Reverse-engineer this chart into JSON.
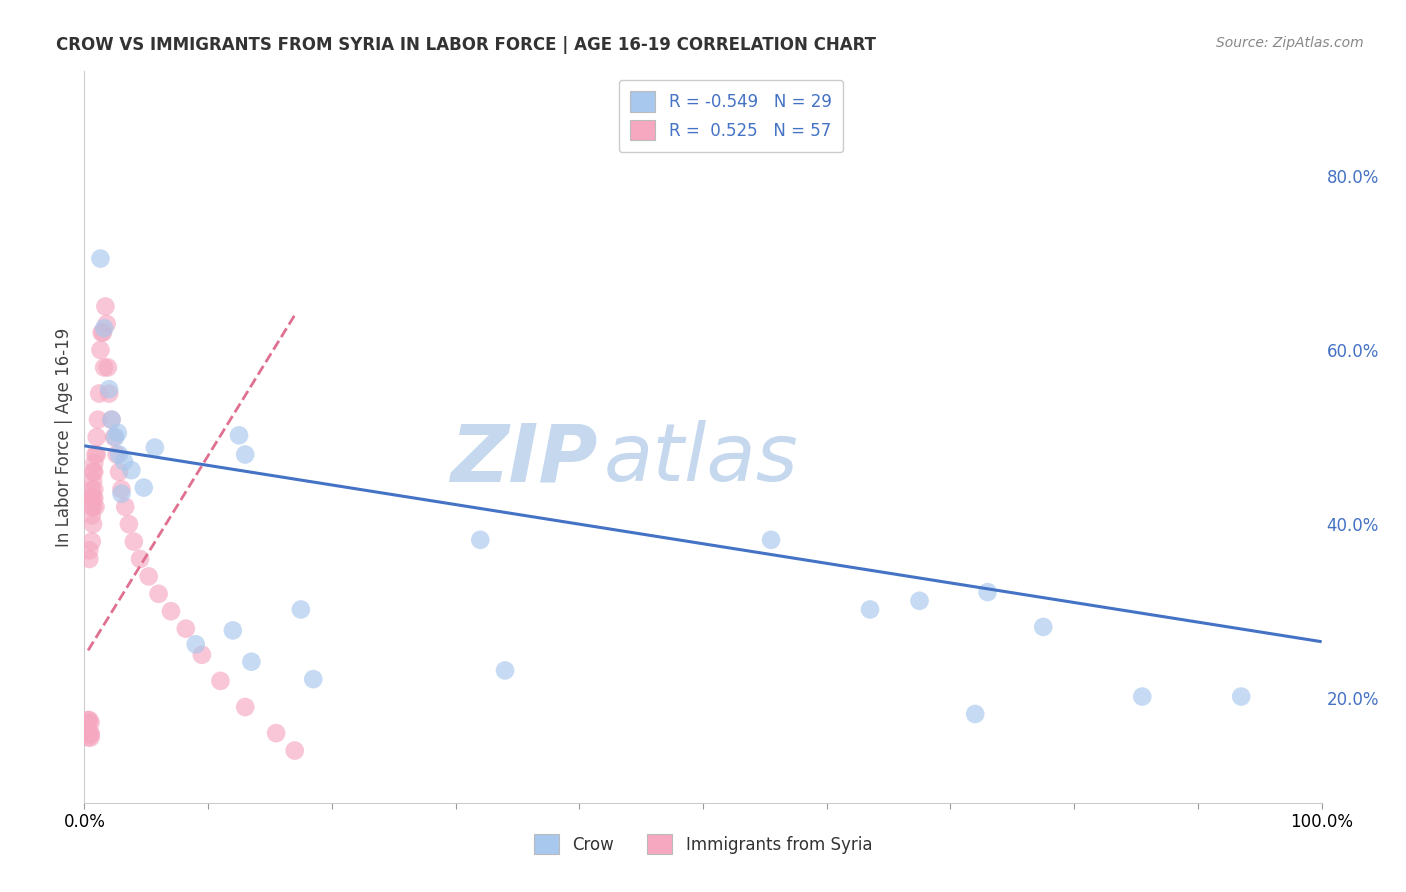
{
  "title": "CROW VS IMMIGRANTS FROM SYRIA IN LABOR FORCE | AGE 16-19 CORRELATION CHART",
  "source": "Source: ZipAtlas.com",
  "ylabel": "In Labor Force | Age 16-19",
  "right_yticks": [
    "20.0%",
    "40.0%",
    "60.0%",
    "80.0%"
  ],
  "right_ytick_vals": [
    0.2,
    0.4,
    0.6,
    0.8
  ],
  "xlim": [
    0.0,
    1.0
  ],
  "ylim": [
    0.08,
    0.92
  ],
  "watermark_zip": "ZIP",
  "watermark_atlas": "atlas",
  "legend_r_crow": "-0.549",
  "legend_n_crow": "29",
  "legend_r_syria": "0.525",
  "legend_n_syria": "57",
  "crow_color": "#A8C8ED",
  "syria_color": "#F5A8C0",
  "crow_line_color": "#4472C4",
  "syria_line_color": "#E07090",
  "crow_scatter_x": [
    0.013,
    0.016,
    0.02,
    0.022,
    0.025,
    0.027,
    0.028,
    0.03,
    0.032,
    0.038,
    0.048,
    0.057,
    0.09,
    0.12,
    0.125,
    0.13,
    0.135,
    0.175,
    0.185,
    0.32,
    0.34,
    0.555,
    0.635,
    0.675,
    0.72,
    0.73,
    0.775,
    0.855,
    0.935
  ],
  "crow_scatter_y": [
    0.705,
    0.625,
    0.555,
    0.52,
    0.5,
    0.505,
    0.48,
    0.435,
    0.472,
    0.462,
    0.442,
    0.488,
    0.262,
    0.278,
    0.502,
    0.48,
    0.242,
    0.302,
    0.222,
    0.382,
    0.232,
    0.382,
    0.302,
    0.312,
    0.182,
    0.322,
    0.282,
    0.202,
    0.202
  ],
  "crow_trendline_x": [
    0.0,
    1.0
  ],
  "crow_trendline_y": [
    0.49,
    0.265
  ],
  "syria_scatter_x": [
    0.003,
    0.003,
    0.003,
    0.003,
    0.004,
    0.004,
    0.004,
    0.005,
    0.005,
    0.005,
    0.005,
    0.006,
    0.006,
    0.006,
    0.006,
    0.006,
    0.007,
    0.007,
    0.007,
    0.007,
    0.007,
    0.008,
    0.008,
    0.008,
    0.008,
    0.009,
    0.009,
    0.01,
    0.01,
    0.011,
    0.012,
    0.013,
    0.014,
    0.015,
    0.016,
    0.017,
    0.018,
    0.019,
    0.02,
    0.022,
    0.024,
    0.026,
    0.028,
    0.03,
    0.033,
    0.036,
    0.04,
    0.045,
    0.052,
    0.06,
    0.07,
    0.082,
    0.095,
    0.11,
    0.13,
    0.155,
    0.17
  ],
  "syria_scatter_y": [
    0.172,
    0.175,
    0.155,
    0.16,
    0.37,
    0.36,
    0.175,
    0.172,
    0.16,
    0.155,
    0.158,
    0.42,
    0.43,
    0.44,
    0.38,
    0.41,
    0.45,
    0.46,
    0.43,
    0.4,
    0.42,
    0.43,
    0.44,
    0.46,
    0.47,
    0.42,
    0.48,
    0.5,
    0.48,
    0.52,
    0.55,
    0.6,
    0.62,
    0.62,
    0.58,
    0.65,
    0.63,
    0.58,
    0.55,
    0.52,
    0.5,
    0.48,
    0.46,
    0.44,
    0.42,
    0.4,
    0.38,
    0.36,
    0.34,
    0.32,
    0.3,
    0.28,
    0.25,
    0.22,
    0.19,
    0.16,
    0.14
  ],
  "syria_trendline_x": [
    0.003,
    0.17
  ],
  "syria_trendline_y": [
    0.255,
    0.64
  ],
  "grid_color": "#CCCCCC",
  "background_color": "#FFFFFF",
  "xticks": [
    0.0,
    0.1,
    0.2,
    0.3,
    0.4,
    0.5,
    0.6,
    0.7,
    0.8,
    0.9,
    1.0
  ]
}
